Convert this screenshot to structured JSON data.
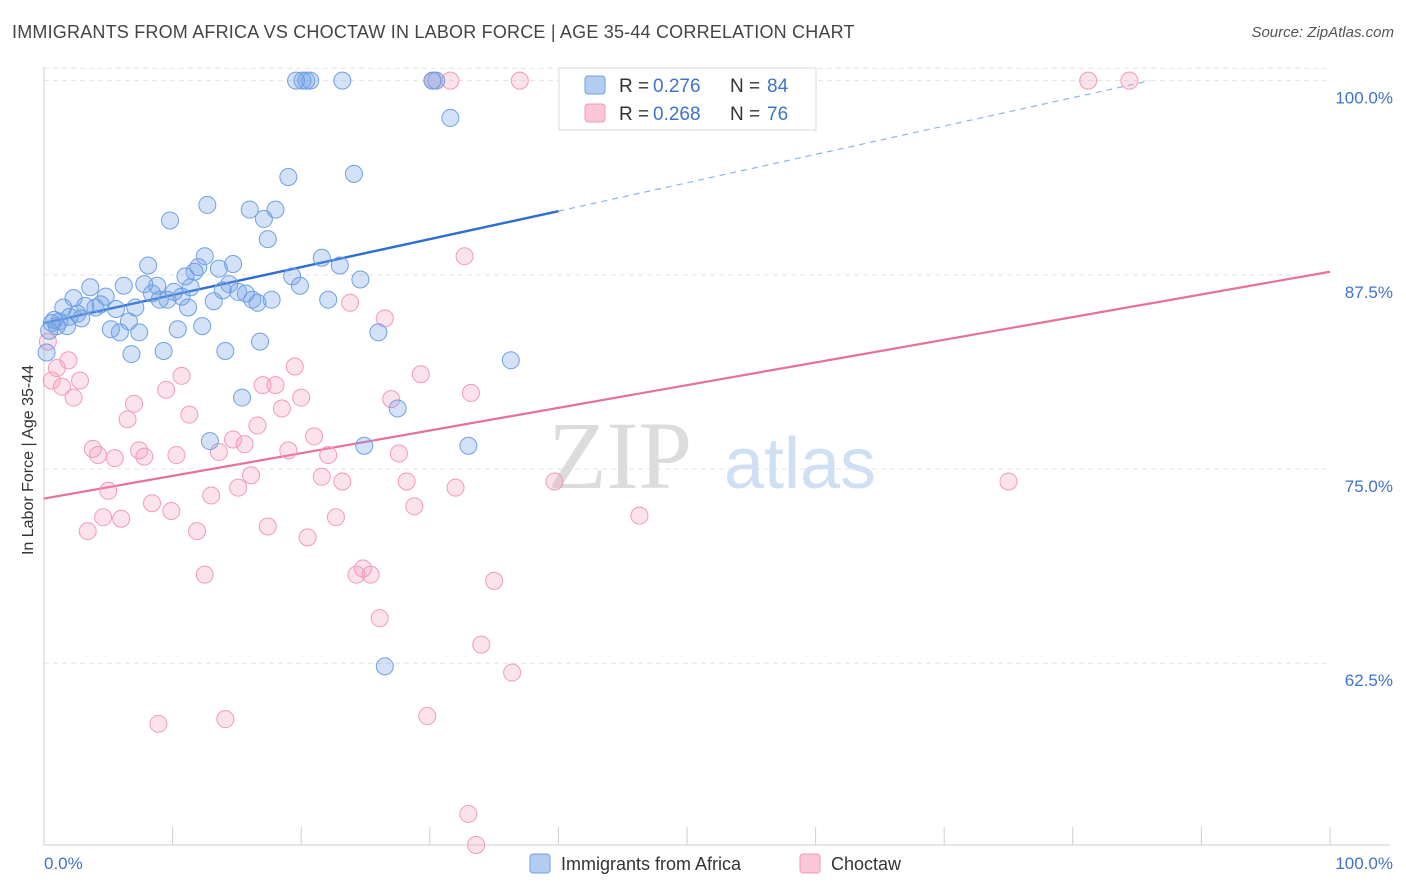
{
  "title": "IMMIGRANTS FROM AFRICA VS CHOCTAW IN LABOR FORCE | AGE 35-44 CORRELATION CHART",
  "source": "Source: ZipAtlas.com",
  "watermark": {
    "zip": "ZIP",
    "atlas": "atlas"
  },
  "legend_box": [
    {
      "r_label": "R =",
      "r_value": "0.276",
      "n_label": "N =",
      "n_value": "84"
    },
    {
      "r_label": "R =",
      "r_value": "0.268",
      "n_label": "N =",
      "n_value": "76"
    }
  ],
  "chart_data": {
    "type": "scatter",
    "ylabel": "In Labor Force | Age 35-44",
    "xlabel": "",
    "x_tick_labels": [
      "0.0%",
      "100.0%"
    ],
    "y_tick_labels": [
      "100.0%",
      "87.5%",
      "75.0%",
      "62.5%"
    ],
    "y_ticks": [
      100.0,
      87.5,
      75.0,
      62.5
    ],
    "xlim": [
      0,
      100
    ],
    "ylim": [
      50.8,
      101.2
    ],
    "grid": true,
    "legend_position": "bottom",
    "colors": {
      "blue": "#6fa0e4",
      "blue_line": "#2c6fce",
      "pink": "#f39ab8",
      "pink_line": "#e8709a"
    },
    "series": [
      {
        "name": "Immigrants from Africa",
        "color": "#6fa0e4",
        "trend": {
          "x": [
            0,
            40
          ],
          "y": [
            84.4,
            91.6
          ]
        },
        "trend_extension": {
          "x": [
            40,
            86
          ],
          "y": [
            91.6,
            100.0
          ]
        },
        "points": [
          [
            0.2,
            82.5
          ],
          [
            0.4,
            83.9
          ],
          [
            0.6,
            84.4
          ],
          [
            0.8,
            84.6
          ],
          [
            1.0,
            84.2
          ],
          [
            1.2,
            84.5
          ],
          [
            1.5,
            85.4
          ],
          [
            1.8,
            84.2
          ],
          [
            2.0,
            84.8
          ],
          [
            2.3,
            86.0
          ],
          [
            2.6,
            85.0
          ],
          [
            2.9,
            84.7
          ],
          [
            3.2,
            85.5
          ],
          [
            3.6,
            86.7
          ],
          [
            4.0,
            85.4
          ],
          [
            4.4,
            85.6
          ],
          [
            4.8,
            86.1
          ],
          [
            5.2,
            84.0
          ],
          [
            5.6,
            85.3
          ],
          [
            5.9,
            83.8
          ],
          [
            6.2,
            86.8
          ],
          [
            6.6,
            84.5
          ],
          [
            6.8,
            82.4
          ],
          [
            7.1,
            85.4
          ],
          [
            7.4,
            83.8
          ],
          [
            7.8,
            86.9
          ],
          [
            8.1,
            88.1
          ],
          [
            8.4,
            86.3
          ],
          [
            8.8,
            86.8
          ],
          [
            9.0,
            85.9
          ],
          [
            9.3,
            82.6
          ],
          [
            9.6,
            85.9
          ],
          [
            9.8,
            91.0
          ],
          [
            10.1,
            86.4
          ],
          [
            10.4,
            84.0
          ],
          [
            10.7,
            86.1
          ],
          [
            11.0,
            87.4
          ],
          [
            11.2,
            85.4
          ],
          [
            11.4,
            86.7
          ],
          [
            11.7,
            87.7
          ],
          [
            12.0,
            88.0
          ],
          [
            12.3,
            84.2
          ],
          [
            12.5,
            88.7
          ],
          [
            12.7,
            92.0
          ],
          [
            12.9,
            76.8
          ],
          [
            13.2,
            85.8
          ],
          [
            13.6,
            87.9
          ],
          [
            13.9,
            86.5
          ],
          [
            14.1,
            82.6
          ],
          [
            14.4,
            86.9
          ],
          [
            14.7,
            88.2
          ],
          [
            15.1,
            86.4
          ],
          [
            15.4,
            79.6
          ],
          [
            15.7,
            86.3
          ],
          [
            16.0,
            91.7
          ],
          [
            16.2,
            85.9
          ],
          [
            16.6,
            85.7
          ],
          [
            16.8,
            83.2
          ],
          [
            17.1,
            91.1
          ],
          [
            17.4,
            89.8
          ],
          [
            17.7,
            85.9
          ],
          [
            18.0,
            91.7
          ],
          [
            19.0,
            93.8
          ],
          [
            19.3,
            87.4
          ],
          [
            19.6,
            100.0
          ],
          [
            19.9,
            86.8
          ],
          [
            20.1,
            100.0
          ],
          [
            20.4,
            100.0
          ],
          [
            20.7,
            100.0
          ],
          [
            21.6,
            88.6
          ],
          [
            22.1,
            85.9
          ],
          [
            23.0,
            88.1
          ],
          [
            23.2,
            100.0
          ],
          [
            24.1,
            94.0
          ],
          [
            24.6,
            87.2
          ],
          [
            26.0,
            83.8
          ],
          [
            26.5,
            62.3
          ],
          [
            27.5,
            78.9
          ],
          [
            30.2,
            100.0
          ],
          [
            30.5,
            100.0
          ],
          [
            31.6,
            97.6
          ],
          [
            33.0,
            76.5
          ],
          [
            36.3,
            82.0
          ],
          [
            24.9,
            76.5
          ]
        ]
      },
      {
        "name": "Choctaw",
        "color": "#f39ab8",
        "trend": {
          "x": [
            0,
            100
          ],
          "y": [
            73.1,
            87.7
          ]
        },
        "points": [
          [
            0.3,
            83.2
          ],
          [
            0.6,
            80.7
          ],
          [
            1.0,
            81.5
          ],
          [
            1.4,
            80.3
          ],
          [
            1.9,
            82.0
          ],
          [
            2.3,
            79.6
          ],
          [
            2.8,
            80.7
          ],
          [
            3.4,
            71.0
          ],
          [
            3.8,
            76.3
          ],
          [
            4.2,
            75.9
          ],
          [
            4.6,
            71.9
          ],
          [
            5.0,
            73.6
          ],
          [
            5.5,
            75.7
          ],
          [
            6.0,
            71.8
          ],
          [
            6.5,
            78.2
          ],
          [
            7.0,
            79.2
          ],
          [
            7.4,
            76.2
          ],
          [
            7.8,
            75.8
          ],
          [
            8.4,
            72.8
          ],
          [
            8.9,
            58.6
          ],
          [
            9.5,
            80.1
          ],
          [
            9.9,
            72.3
          ],
          [
            10.3,
            75.9
          ],
          [
            10.7,
            81.0
          ],
          [
            11.3,
            78.5
          ],
          [
            11.9,
            71.0
          ],
          [
            12.5,
            68.2
          ],
          [
            13.0,
            73.3
          ],
          [
            13.6,
            76.1
          ],
          [
            14.1,
            58.9
          ],
          [
            14.7,
            76.9
          ],
          [
            15.1,
            73.8
          ],
          [
            15.6,
            76.6
          ],
          [
            16.1,
            74.6
          ],
          [
            16.6,
            77.8
          ],
          [
            17.0,
            80.4
          ],
          [
            17.4,
            71.3
          ],
          [
            18.0,
            80.4
          ],
          [
            18.5,
            78.9
          ],
          [
            19.0,
            76.2
          ],
          [
            19.5,
            81.6
          ],
          [
            20.0,
            79.6
          ],
          [
            20.5,
            70.6
          ],
          [
            21.0,
            77.1
          ],
          [
            21.6,
            74.5
          ],
          [
            22.1,
            75.9
          ],
          [
            22.7,
            71.9
          ],
          [
            23.2,
            74.2
          ],
          [
            23.8,
            85.7
          ],
          [
            24.3,
            68.2
          ],
          [
            24.8,
            68.6
          ],
          [
            25.4,
            68.2
          ],
          [
            26.1,
            65.4
          ],
          [
            26.5,
            84.7
          ],
          [
            27.0,
            79.5
          ],
          [
            27.6,
            76.0
          ],
          [
            28.2,
            74.2
          ],
          [
            28.8,
            72.6
          ],
          [
            29.3,
            81.1
          ],
          [
            29.8,
            59.1
          ],
          [
            30.3,
            100.0
          ],
          [
            31.6,
            100.0
          ],
          [
            32.0,
            73.8
          ],
          [
            32.7,
            88.7
          ],
          [
            33.2,
            79.9
          ],
          [
            34.0,
            63.7
          ],
          [
            35.0,
            67.8
          ],
          [
            36.4,
            61.9
          ],
          [
            37.0,
            100.0
          ],
          [
            39.7,
            74.2
          ],
          [
            46.3,
            72.0
          ],
          [
            75.0,
            74.2
          ],
          [
            81.2,
            100.0
          ],
          [
            84.4,
            100.0
          ],
          [
            33.0,
            52.8
          ],
          [
            33.6,
            50.8
          ]
        ]
      }
    ]
  },
  "legend_bottom": [
    "Immigrants from Africa",
    "Choctaw"
  ]
}
